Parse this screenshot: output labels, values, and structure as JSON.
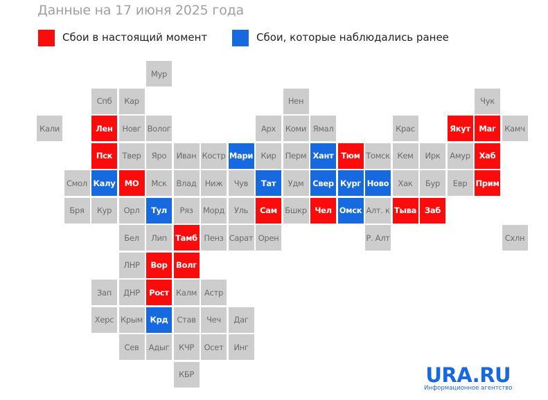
{
  "colors": {
    "current": "#fb0b0b",
    "past": "#1769e0",
    "none": "#cdcdcd",
    "logo": "#1769e0"
  },
  "chart_data": {
    "type": "heatmap",
    "title": "Данные на 17 июня 2025 года",
    "legend": [
      {
        "key": "current",
        "label": "Сбои в настоящий момент"
      },
      {
        "key": "past",
        "label": "Сбои, которые наблюдались ранее"
      }
    ],
    "legend_placement": "top-left",
    "tiles": [
      [
        "Мур",
        4,
        0,
        "none"
      ],
      [
        "Спб",
        2,
        1,
        "none"
      ],
      [
        "Кар",
        3,
        1,
        "none"
      ],
      [
        "Нен",
        9,
        1,
        "none"
      ],
      [
        "Чук",
        16,
        1,
        "none"
      ],
      [
        "Кали",
        0,
        2,
        "none"
      ],
      [
        "Лен",
        2,
        2,
        "current"
      ],
      [
        "Новг",
        3,
        2,
        "none"
      ],
      [
        "Волог",
        4,
        2,
        "none"
      ],
      [
        "Арх",
        8,
        2,
        "none"
      ],
      [
        "Коми",
        9,
        2,
        "none"
      ],
      [
        "Ямал",
        10,
        2,
        "none"
      ],
      [
        "Крас",
        13,
        2,
        "none"
      ],
      [
        "Якут",
        15,
        2,
        "current"
      ],
      [
        "Маг",
        16,
        2,
        "current"
      ],
      [
        "Камч",
        17,
        2,
        "none"
      ],
      [
        "Пск",
        2,
        3,
        "current"
      ],
      [
        "Твер",
        3,
        3,
        "none"
      ],
      [
        "Яро",
        4,
        3,
        "none"
      ],
      [
        "Иван",
        5,
        3,
        "none"
      ],
      [
        "Костр",
        6,
        3,
        "none"
      ],
      [
        "Мари",
        7,
        3,
        "past"
      ],
      [
        "Кир",
        8,
        3,
        "none"
      ],
      [
        "Перм",
        9,
        3,
        "none"
      ],
      [
        "Хант",
        10,
        3,
        "past"
      ],
      [
        "Тюм",
        11,
        3,
        "current"
      ],
      [
        "Томск",
        12,
        3,
        "none"
      ],
      [
        "Кем",
        13,
        3,
        "none"
      ],
      [
        "Ирк",
        14,
        3,
        "none"
      ],
      [
        "Амур",
        15,
        3,
        "none"
      ],
      [
        "Хаб",
        16,
        3,
        "current"
      ],
      [
        "Смол",
        1,
        4,
        "none"
      ],
      [
        "Калу",
        2,
        4,
        "past"
      ],
      [
        "МО",
        3,
        4,
        "current"
      ],
      [
        "Мск",
        4,
        4,
        "none"
      ],
      [
        "Влад",
        5,
        4,
        "none"
      ],
      [
        "Ниж",
        6,
        4,
        "none"
      ],
      [
        "Чув",
        7,
        4,
        "none"
      ],
      [
        "Тат",
        8,
        4,
        "past"
      ],
      [
        "Удм",
        9,
        4,
        "none"
      ],
      [
        "Свер",
        10,
        4,
        "past"
      ],
      [
        "Кург",
        11,
        4,
        "past"
      ],
      [
        "Ново",
        12,
        4,
        "past"
      ],
      [
        "Хак",
        13,
        4,
        "none"
      ],
      [
        "Бур",
        14,
        4,
        "none"
      ],
      [
        "Евр",
        15,
        4,
        "none"
      ],
      [
        "Прим",
        16,
        4,
        "current"
      ],
      [
        "Бря",
        1,
        5,
        "none"
      ],
      [
        "Кур",
        2,
        5,
        "none"
      ],
      [
        "Орл",
        3,
        5,
        "none"
      ],
      [
        "Тул",
        4,
        5,
        "past"
      ],
      [
        "Ряз",
        5,
        5,
        "none"
      ],
      [
        "Морд",
        6,
        5,
        "none"
      ],
      [
        "Уль",
        7,
        5,
        "none"
      ],
      [
        "Сам",
        8,
        5,
        "current"
      ],
      [
        "Бшкр",
        9,
        5,
        "none"
      ],
      [
        "Чел",
        10,
        5,
        "current"
      ],
      [
        "Омск",
        11,
        5,
        "past"
      ],
      [
        "Алт. к",
        12,
        5,
        "none"
      ],
      [
        "Тыва",
        13,
        5,
        "current"
      ],
      [
        "Заб",
        14,
        5,
        "current"
      ],
      [
        "Бел",
        3,
        6,
        "none"
      ],
      [
        "Лип",
        4,
        6,
        "none"
      ],
      [
        "Тамб",
        5,
        6,
        "current"
      ],
      [
        "Пенз",
        6,
        6,
        "none"
      ],
      [
        "Сарат",
        7,
        6,
        "none"
      ],
      [
        "Орен",
        8,
        6,
        "none"
      ],
      [
        "Р. Алт",
        12,
        6,
        "none"
      ],
      [
        "Схлн",
        17,
        6,
        "none"
      ],
      [
        "ЛНР",
        3,
        7,
        "none"
      ],
      [
        "Вор",
        4,
        7,
        "current"
      ],
      [
        "Волг",
        5,
        7,
        "current"
      ],
      [
        "Зап",
        2,
        8,
        "none"
      ],
      [
        "ДНР",
        3,
        8,
        "none"
      ],
      [
        "Рост",
        4,
        8,
        "current"
      ],
      [
        "Калм",
        5,
        8,
        "none"
      ],
      [
        "Астр",
        6,
        8,
        "none"
      ],
      [
        "Херс",
        2,
        9,
        "none"
      ],
      [
        "Крым",
        3,
        9,
        "none"
      ],
      [
        "Крд",
        4,
        9,
        "past"
      ],
      [
        "Став",
        5,
        9,
        "none"
      ],
      [
        "Чеч",
        6,
        9,
        "none"
      ],
      [
        "Даг",
        7,
        9,
        "none"
      ],
      [
        "Сев",
        3,
        10,
        "none"
      ],
      [
        "Адыг",
        4,
        10,
        "none"
      ],
      [
        "КЧР",
        5,
        10,
        "none"
      ],
      [
        "Осет",
        6,
        10,
        "none"
      ],
      [
        "Инг",
        7,
        10,
        "none"
      ],
      [
        "КБР",
        5,
        11,
        "none"
      ]
    ]
  },
  "logo": {
    "main": "URA.RU",
    "sub": "Информационное агентство"
  }
}
